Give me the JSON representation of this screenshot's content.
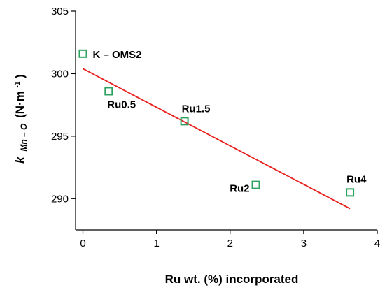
{
  "chart_data": {
    "type": "scatter",
    "title": "",
    "xlabel": "Ru wt. (%) incorporated",
    "ylabel": {
      "k": "k",
      "sub": "Mn – O",
      "unit_open": "(N·m",
      "unit_sup": "-1",
      "unit_close": ")"
    },
    "xlim": [
      -0.1,
      4
    ],
    "ylim": [
      287.5,
      305
    ],
    "x_ticks": [
      0,
      1,
      2,
      3,
      4
    ],
    "y_ticks": [
      290,
      295,
      300,
      305
    ],
    "x_tick_labels": [
      "0",
      "1",
      "2",
      "3",
      "4"
    ],
    "y_tick_labels": [
      "290",
      "295",
      "300",
      "305"
    ],
    "points": [
      {
        "label": "K – OMS2",
        "x": 0.0,
        "y": 301.6
      },
      {
        "label": "Ru0.5",
        "x": 0.35,
        "y": 298.6
      },
      {
        "label": "Ru1.5",
        "x": 1.38,
        "y": 296.2
      },
      {
        "label": "Ru2",
        "x": 2.35,
        "y": 291.1
      },
      {
        "label": "Ru4",
        "x": 3.63,
        "y": 290.5
      }
    ],
    "fit_line": {
      "x": [
        0.0,
        3.63
      ],
      "y": [
        300.4,
        289.2
      ]
    },
    "grid": false,
    "legend": "none",
    "colors": {
      "marker": "#2ca25f",
      "fit_line": "#e8201d",
      "axis": "#000000"
    }
  }
}
